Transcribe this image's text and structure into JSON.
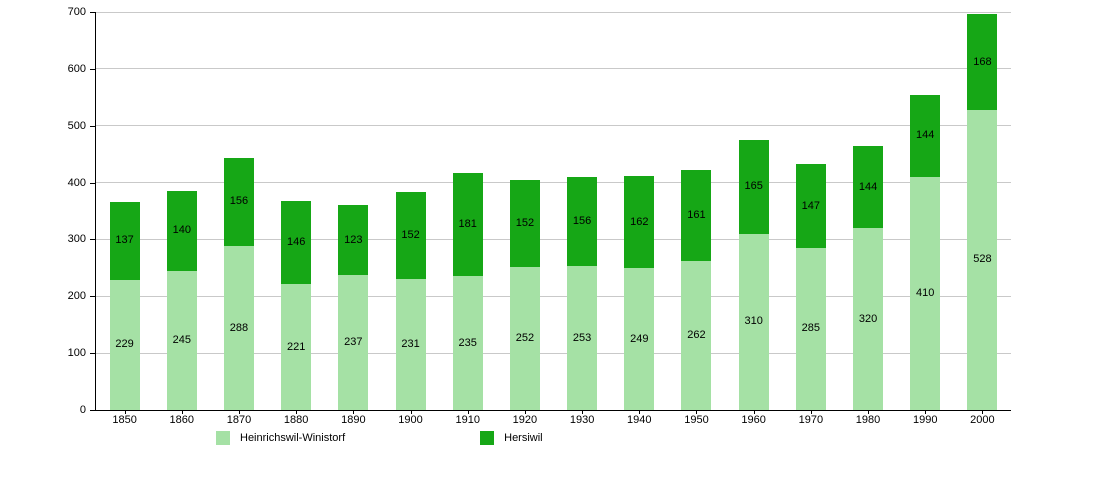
{
  "chart_data": {
    "type": "bar",
    "stacked": true,
    "title": "",
    "xlabel": "",
    "ylabel": "",
    "categories": [
      "1850",
      "1860",
      "1870",
      "1880",
      "1890",
      "1900",
      "1910",
      "1920",
      "1930",
      "1940",
      "1950",
      "1960",
      "1970",
      "1980",
      "1990",
      "2000"
    ],
    "series": [
      {
        "name": "Heinrichswil-Winistorf",
        "color": "#a5e1a5",
        "values": [
          229,
          245,
          288,
          221,
          237,
          231,
          235,
          252,
          253,
          249,
          262,
          310,
          285,
          320,
          410,
          528
        ]
      },
      {
        "name": "Hersiwil",
        "color": "#16a716",
        "values": [
          137,
          140,
          156,
          146,
          123,
          152,
          181,
          152,
          156,
          162,
          161,
          165,
          147,
          144,
          144,
          168
        ]
      }
    ],
    "ylim": [
      0,
      700
    ],
    "yticks": [
      "0",
      "100",
      "200",
      "300",
      "400",
      "500",
      "600",
      "700"
    ],
    "grid": true,
    "legend_position": "bottom",
    "colors": {
      "grid": "#c9c9c9",
      "axis": "#000000",
      "text": "#000000",
      "background": "#ffffff"
    }
  }
}
